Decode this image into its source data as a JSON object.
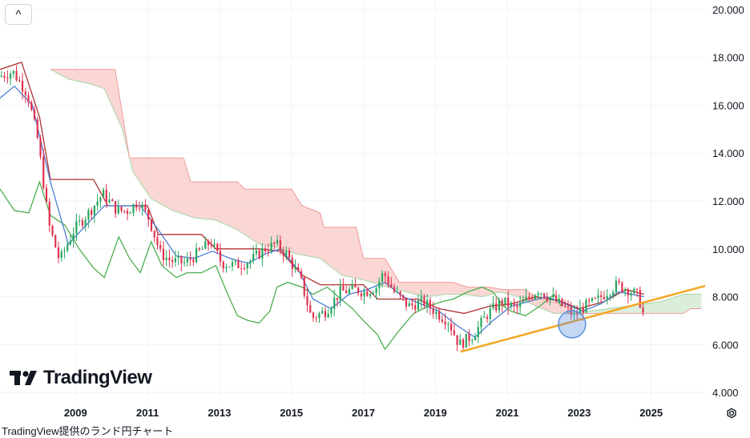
{
  "ui": {
    "collapse_glyph": "^",
    "logo_text": "TradingView",
    "caption": "TradingView提供のランド円チャート",
    "settings_icon": "gear-icon"
  },
  "colors": {
    "candle_up": "#26a65b",
    "candle_down": "#e0304d",
    "conversion_line": "#4a7fd6",
    "base_line": "#b03030",
    "lagging_span": "#4caf50",
    "cloud_bearish": "#f8c9c5",
    "cloud_bullish": "#cfe8cf",
    "leading_span_a": "#a5d6a7",
    "leading_span_b": "#ef9a9a",
    "trendline": "#f5a623",
    "highlight_circle": "#5b8fe0"
  },
  "chart_data": {
    "type": "candlestick",
    "title": "",
    "xlabel": "",
    "ylabel": "",
    "x_range": [
      2007.4,
      2027.0
    ],
    "ylim": [
      3.6,
      20.4
    ],
    "y_ticks": [
      "4.000",
      "6.000",
      "8.000",
      "10.000",
      "12.000",
      "14.000",
      "16.000",
      "18.000",
      "20.000"
    ],
    "x_ticks": [
      "2009",
      "2011",
      "2013",
      "2015",
      "2017",
      "2019",
      "2021",
      "2023",
      "2025"
    ],
    "grid": true,
    "price_path": [
      [
        2007.4,
        17.2
      ],
      [
        2007.8,
        17.4
      ],
      [
        2008.2,
        16.5
      ],
      [
        2008.5,
        14.5
      ],
      [
        2008.8,
        11.0
      ],
      [
        2009.1,
        9.5
      ],
      [
        2009.5,
        10.8
      ],
      [
        2009.9,
        11.5
      ],
      [
        2010.3,
        12.3
      ],
      [
        2010.7,
        11.6
      ],
      [
        2011.0,
        11.6
      ],
      [
        2011.3,
        12.0
      ],
      [
        2011.6,
        11.2
      ],
      [
        2011.9,
        9.8
      ],
      [
        2012.2,
        9.5
      ],
      [
        2012.6,
        9.4
      ],
      [
        2013.0,
        9.9
      ],
      [
        2013.3,
        10.3
      ],
      [
        2013.6,
        9.4
      ],
      [
        2014.0,
        9.3
      ],
      [
        2014.4,
        9.5
      ],
      [
        2014.8,
        10.0
      ],
      [
        2015.1,
        10.2
      ],
      [
        2015.4,
        9.8
      ],
      [
        2015.8,
        8.7
      ],
      [
        2016.1,
        7.1
      ],
      [
        2016.5,
        7.4
      ],
      [
        2016.9,
        8.2
      ],
      [
        2017.3,
        8.3
      ],
      [
        2017.6,
        8.2
      ],
      [
        2017.9,
        8.4
      ],
      [
        2018.1,
        9.0
      ],
      [
        2018.4,
        8.2
      ],
      [
        2018.8,
        7.6
      ],
      [
        2019.2,
        7.8
      ],
      [
        2019.6,
        7.3
      ],
      [
        2019.9,
        7.0
      ],
      [
        2020.2,
        6.0
      ],
      [
        2020.6,
        6.4
      ],
      [
        2021.0,
        7.3
      ],
      [
        2021.4,
        7.8
      ],
      [
        2021.8,
        7.5
      ],
      [
        2022.1,
        7.9
      ],
      [
        2022.4,
        8.3
      ],
      [
        2022.8,
        7.9
      ],
      [
        2023.1,
        7.6
      ],
      [
        2023.4,
        7.2
      ],
      [
        2023.7,
        7.6
      ],
      [
        2024.0,
        7.8
      ],
      [
        2024.3,
        8.2
      ],
      [
        2024.6,
        8.5
      ],
      [
        2024.9,
        8.3
      ],
      [
        2025.2,
        8.0
      ],
      [
        2025.3,
        7.3
      ]
    ],
    "conversion_line": [
      [
        2007.4,
        16.3
      ],
      [
        2007.8,
        16.8
      ],
      [
        2008.3,
        16.0
      ],
      [
        2008.8,
        12.8
      ],
      [
        2009.3,
        10.2
      ],
      [
        2009.8,
        11.0
      ],
      [
        2010.3,
        11.8
      ],
      [
        2010.8,
        11.8
      ],
      [
        2011.3,
        11.8
      ],
      [
        2011.8,
        10.8
      ],
      [
        2012.3,
        9.7
      ],
      [
        2012.8,
        9.6
      ],
      [
        2013.3,
        9.9
      ],
      [
        2013.8,
        9.6
      ],
      [
        2014.3,
        9.4
      ],
      [
        2014.8,
        9.8
      ],
      [
        2015.2,
        10.0
      ],
      [
        2015.7,
        9.1
      ],
      [
        2016.1,
        7.9
      ],
      [
        2016.6,
        7.5
      ],
      [
        2017.1,
        8.1
      ],
      [
        2017.6,
        8.3
      ],
      [
        2018.1,
        8.6
      ],
      [
        2018.6,
        8.0
      ],
      [
        2019.1,
        7.7
      ],
      [
        2019.6,
        7.4
      ],
      [
        2020.1,
        6.8
      ],
      [
        2020.6,
        6.3
      ],
      [
        2021.1,
        7.0
      ],
      [
        2021.6,
        7.6
      ],
      [
        2022.1,
        7.8
      ],
      [
        2022.6,
        8.0
      ],
      [
        2023.1,
        7.7
      ],
      [
        2023.6,
        7.4
      ],
      [
        2024.1,
        7.7
      ],
      [
        2024.6,
        8.2
      ],
      [
        2025.3,
        8.0
      ]
    ],
    "base_line": [
      [
        2007.4,
        17.5
      ],
      [
        2008.0,
        17.8
      ],
      [
        2008.5,
        15.5
      ],
      [
        2008.8,
        12.9
      ],
      [
        2010.0,
        12.9
      ],
      [
        2010.4,
        11.8
      ],
      [
        2011.5,
        11.8
      ],
      [
        2011.8,
        10.6
      ],
      [
        2013.0,
        10.6
      ],
      [
        2013.4,
        10.0
      ],
      [
        2014.6,
        10.0
      ],
      [
        2015.2,
        9.9
      ],
      [
        2015.8,
        8.9
      ],
      [
        2016.3,
        8.5
      ],
      [
        2017.5,
        8.5
      ],
      [
        2017.9,
        7.9
      ],
      [
        2019.0,
        7.9
      ],
      [
        2019.6,
        7.5
      ],
      [
        2020.3,
        7.3
      ],
      [
        2021.0,
        7.6
      ],
      [
        2021.6,
        7.7
      ],
      [
        2022.3,
        8.0
      ],
      [
        2023.0,
        7.8
      ],
      [
        2023.5,
        7.5
      ],
      [
        2024.2,
        7.8
      ],
      [
        2024.8,
        8.3
      ],
      [
        2025.3,
        8.1
      ]
    ],
    "lagging_span": [
      [
        2007.4,
        12.5
      ],
      [
        2007.8,
        11.6
      ],
      [
        2008.2,
        11.5
      ],
      [
        2008.5,
        12.8
      ],
      [
        2008.8,
        11.4
      ],
      [
        2009.2,
        11.0
      ],
      [
        2009.6,
        10.0
      ],
      [
        2010.0,
        9.2
      ],
      [
        2010.3,
        8.8
      ],
      [
        2010.7,
        10.5
      ],
      [
        2011.0,
        9.6
      ],
      [
        2011.3,
        9.0
      ],
      [
        2011.6,
        10.3
      ],
      [
        2011.9,
        9.3
      ],
      [
        2012.3,
        8.8
      ],
      [
        2012.6,
        9.0
      ],
      [
        2013.0,
        9.0
      ],
      [
        2013.4,
        9.3
      ],
      [
        2013.7,
        8.2
      ],
      [
        2014.0,
        7.2
      ],
      [
        2014.3,
        7.0
      ],
      [
        2014.6,
        6.9
      ],
      [
        2014.9,
        7.4
      ],
      [
        2015.1,
        8.4
      ],
      [
        2015.4,
        8.6
      ],
      [
        2015.8,
        8.4
      ],
      [
        2016.1,
        8.1
      ],
      [
        2016.5,
        8.4
      ],
      [
        2016.8,
        8.0
      ],
      [
        2017.2,
        7.5
      ],
      [
        2017.5,
        7.0
      ],
      [
        2017.9,
        6.4
      ],
      [
        2018.1,
        5.8
      ],
      [
        2018.5,
        6.6
      ],
      [
        2018.9,
        7.3
      ],
      [
        2019.3,
        7.6
      ],
      [
        2019.7,
        7.8
      ],
      [
        2020.0,
        7.9
      ],
      [
        2020.4,
        8.2
      ],
      [
        2020.8,
        8.4
      ],
      [
        2021.1,
        8.2
      ],
      [
        2021.4,
        7.6
      ],
      [
        2021.6,
        7.4
      ],
      [
        2022.0,
        7.2
      ],
      [
        2022.4,
        7.6
      ],
      [
        2022.8,
        8.1
      ],
      [
        2023.0,
        7.6
      ]
    ],
    "leading_span_a": [
      [
        2008.8,
        17.5
      ],
      [
        2009.3,
        17.1
      ],
      [
        2009.9,
        16.9
      ],
      [
        2010.3,
        16.7
      ],
      [
        2010.8,
        15.0
      ],
      [
        2011.1,
        13.2
      ],
      [
        2011.6,
        12.1
      ],
      [
        2012.2,
        11.6
      ],
      [
        2012.8,
        11.3
      ],
      [
        2013.4,
        11.2
      ],
      [
        2014.0,
        10.8
      ],
      [
        2014.6,
        10.2
      ],
      [
        2015.0,
        10.1
      ],
      [
        2015.6,
        9.8
      ],
      [
        2016.3,
        9.6
      ],
      [
        2016.9,
        8.9
      ],
      [
        2017.5,
        8.7
      ],
      [
        2018.2,
        8.4
      ],
      [
        2018.7,
        8.2
      ],
      [
        2019.2,
        8.0
      ],
      [
        2019.8,
        8.1
      ],
      [
        2020.3,
        8.1
      ],
      [
        2020.8,
        8.0
      ],
      [
        2021.3,
        8.2
      ],
      [
        2021.8,
        8.0
      ],
      [
        2022.3,
        7.6
      ],
      [
        2022.8,
        7.3
      ],
      [
        2023.3,
        7.3
      ],
      [
        2023.8,
        7.4
      ],
      [
        2024.3,
        7.5
      ],
      [
        2024.8,
        7.6
      ],
      [
        2025.3,
        7.7
      ],
      [
        2025.8,
        7.8
      ],
      [
        2026.4,
        8.1
      ],
      [
        2026.9,
        8.1
      ]
    ],
    "leading_span_b": [
      [
        2008.8,
        17.5
      ],
      [
        2010.6,
        17.5
      ],
      [
        2011.0,
        13.8
      ],
      [
        2012.5,
        13.8
      ],
      [
        2012.7,
        12.8
      ],
      [
        2014.0,
        12.8
      ],
      [
        2014.2,
        12.5
      ],
      [
        2015.5,
        12.5
      ],
      [
        2015.8,
        11.8
      ],
      [
        2016.3,
        11.5
      ],
      [
        2016.4,
        10.9
      ],
      [
        2017.3,
        10.9
      ],
      [
        2017.5,
        9.6
      ],
      [
        2018.1,
        9.6
      ],
      [
        2018.5,
        8.6
      ],
      [
        2020.0,
        8.6
      ],
      [
        2020.4,
        8.4
      ],
      [
        2021.0,
        8.4
      ],
      [
        2021.4,
        8.3
      ],
      [
        2022.0,
        8.3
      ],
      [
        2022.4,
        7.9
      ],
      [
        2023.0,
        7.7
      ],
      [
        2023.5,
        7.3
      ],
      [
        2024.8,
        7.3
      ],
      [
        2025.8,
        7.3
      ],
      [
        2026.4,
        7.3
      ],
      [
        2026.6,
        7.5
      ],
      [
        2026.9,
        7.5
      ]
    ],
    "trendline": [
      [
        2020.2,
        5.7
      ],
      [
        2027.0,
        8.45
      ]
    ],
    "highlight_circle": {
      "x": 2023.3,
      "y": 6.85
    }
  }
}
